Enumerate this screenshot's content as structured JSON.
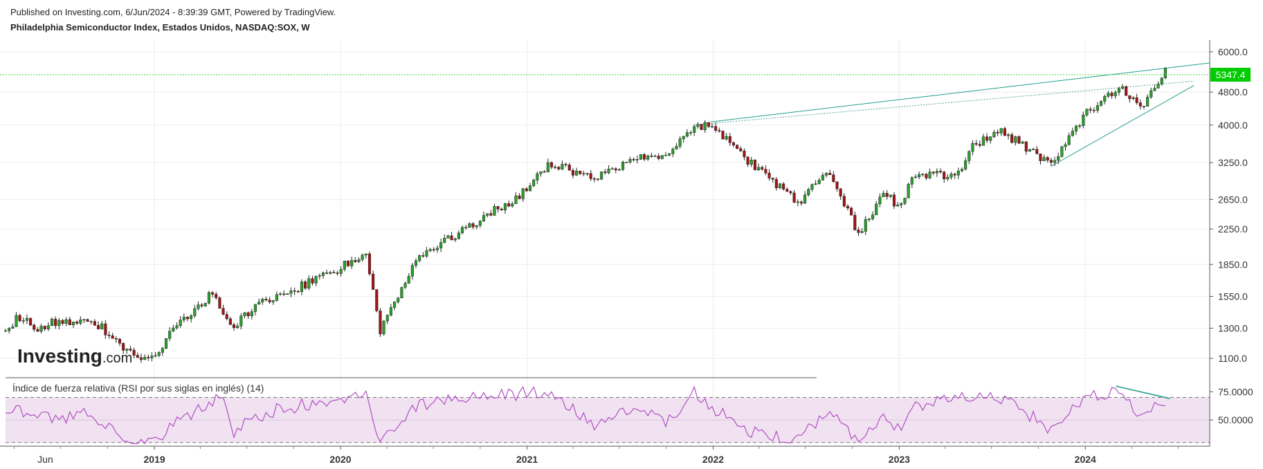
{
  "header": {
    "published": "Published on Investing.com, 6/Jun/2024 - 8:39:39 GMT, Powered by TradingView.",
    "title": "Philadelphia Semiconductor Index, Estados Unidos, NASDAQ:SOX, W"
  },
  "watermark": {
    "brand": "Investing",
    "suffix": ".com"
  },
  "colors": {
    "up": "#2ca02c",
    "down": "#a31515",
    "rsi_line": "#b04fc4",
    "rsi_band": "#f1e2f1",
    "trend": "#1f9e8c",
    "last_price": "#00cc00"
  },
  "chart_data": [
    {
      "type": "candlestick",
      "title": "Philadelphia Semiconductor Index, Estados Unidos, NASDAQ:SOX, W",
      "scale": "log",
      "ylim": [
        1000,
        6400
      ],
      "y_ticks": [
        "6000.0",
        "4800.0",
        "4000.0",
        "3250.0",
        "2650.0",
        "2250.0",
        "1850.0",
        "1550.0",
        "1300.0",
        "1100.0"
      ],
      "x_ticks": [
        "Jun",
        "2019",
        "2020",
        "2021",
        "2022",
        "2023",
        "2024"
      ],
      "xlim": [
        "2018-03-15",
        "2024-09-01"
      ],
      "last_price": "5347.4",
      "anchors": [
        [
          "2018-03-15",
          1280
        ],
        [
          "2018-04-10",
          1390
        ],
        [
          "2018-05-20",
          1300
        ],
        [
          "2018-06-15",
          1350
        ],
        [
          "2018-08-01",
          1360
        ],
        [
          "2018-09-20",
          1310
        ],
        [
          "2018-10-25",
          1180
        ],
        [
          "2018-12-24",
          1080
        ],
        [
          "2019-02-01",
          1260
        ],
        [
          "2019-04-25",
          1580
        ],
        [
          "2019-06-03",
          1320
        ],
        [
          "2019-08-01",
          1500
        ],
        [
          "2019-10-15",
          1640
        ],
        [
          "2019-12-31",
          1810
        ],
        [
          "2020-02-19",
          1990
        ],
        [
          "2020-03-18",
          1280
        ],
        [
          "2020-06-01",
          1910
        ],
        [
          "2020-09-01",
          2250
        ],
        [
          "2020-12-31",
          2780
        ],
        [
          "2021-02-15",
          3250
        ],
        [
          "2021-05-12",
          2980
        ],
        [
          "2021-08-01",
          3350
        ],
        [
          "2021-10-04",
          3380
        ],
        [
          "2021-11-25",
          4000
        ],
        [
          "2021-12-27",
          3990
        ],
        [
          "2022-03-08",
          3300
        ],
        [
          "2022-06-16",
          2600
        ],
        [
          "2022-08-16",
          3100
        ],
        [
          "2022-10-13",
          2180
        ],
        [
          "2022-12-01",
          2760
        ],
        [
          "2022-12-31",
          2540
        ],
        [
          "2023-02-01",
          3050
        ],
        [
          "2023-04-25",
          3000
        ],
        [
          "2023-05-26",
          3550
        ],
        [
          "2023-07-18",
          3880
        ],
        [
          "2023-10-27",
          3230
        ],
        [
          "2023-12-29",
          4200
        ],
        [
          "2024-03-08",
          4980
        ],
        [
          "2024-04-19",
          4350
        ],
        [
          "2024-06-06",
          5347.4
        ]
      ],
      "trendlines": [
        {
          "from": [
            "2021-12-27",
            4070
          ],
          "to": [
            "2024-09-01",
            5640
          ]
        },
        {
          "from": [
            "2021-11-25",
            4005
          ],
          "to": [
            "2024-08-01",
            5100
          ]
        },
        {
          "from": [
            "2023-10-27",
            3190
          ],
          "to": [
            "2024-08-01",
            4980
          ]
        }
      ]
    },
    {
      "type": "line",
      "title": "Índice de fuerza relativa (RSI por sus siglas en inglés) (14)",
      "ylim": [
        28,
        82
      ],
      "bands": [
        30,
        70
      ],
      "y_ticks": [
        "75.0000",
        "50.0000"
      ],
      "anchors": [
        [
          "2018-03-15",
          55
        ],
        [
          "2018-05-01",
          60
        ],
        [
          "2018-06-20",
          50
        ],
        [
          "2018-09-01",
          56
        ],
        [
          "2018-10-25",
          34
        ],
        [
          "2018-12-24",
          31
        ],
        [
          "2019-04-25",
          68
        ],
        [
          "2019-05-20",
          72
        ],
        [
          "2019-06-03",
          40
        ],
        [
          "2019-08-20",
          58
        ],
        [
          "2019-12-31",
          70
        ],
        [
          "2020-02-19",
          74
        ],
        [
          "2020-03-18",
          30
        ],
        [
          "2020-06-01",
          64
        ],
        [
          "2020-12-31",
          74
        ],
        [
          "2021-02-15",
          76
        ],
        [
          "2021-05-12",
          46
        ],
        [
          "2021-08-01",
          62
        ],
        [
          "2021-10-04",
          48
        ],
        [
          "2021-11-25",
          74
        ],
        [
          "2021-12-27",
          62
        ],
        [
          "2022-03-08",
          40
        ],
        [
          "2022-06-16",
          33
        ],
        [
          "2022-08-16",
          56
        ],
        [
          "2022-10-13",
          30
        ],
        [
          "2022-12-01",
          52
        ],
        [
          "2023-01-01",
          42
        ],
        [
          "2023-02-01",
          62
        ],
        [
          "2023-05-26",
          72
        ],
        [
          "2023-07-18",
          70
        ],
        [
          "2023-10-27",
          42
        ],
        [
          "2023-12-29",
          68
        ],
        [
          "2024-03-08",
          77
        ],
        [
          "2024-04-19",
          50
        ],
        [
          "2024-06-06",
          68
        ]
      ],
      "trendlines": [
        {
          "from": [
            "2024-03-01",
            80
          ],
          "to": [
            "2024-06-15",
            69
          ]
        }
      ]
    }
  ]
}
